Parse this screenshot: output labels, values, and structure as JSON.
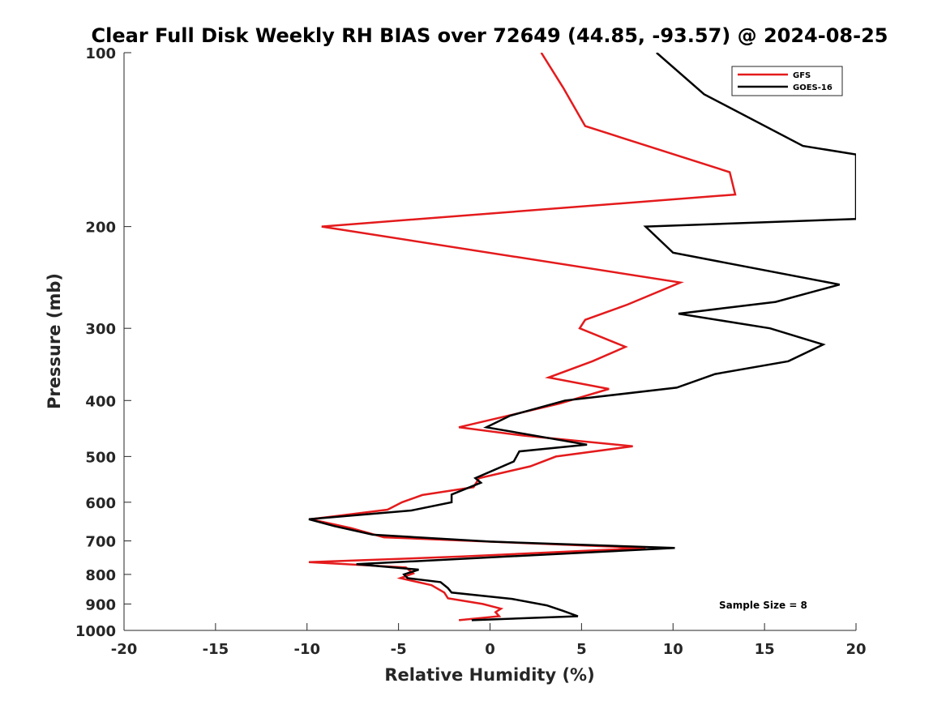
{
  "chart_data": {
    "type": "line",
    "title": "Clear Full Disk Weekly RH BIAS over 72649 (44.85, -93.57) @ 2024-08-25",
    "xlabel": "Relative Humidity (%)",
    "ylabel": "Pressure (mb)",
    "xlim": [
      -20,
      20
    ],
    "ylim": [
      100,
      1000
    ],
    "yscale": "log",
    "y_reversed": true,
    "xticks": [
      -20,
      -15,
      -10,
      -5,
      0,
      5,
      10,
      15,
      20
    ],
    "xtick_labels": [
      "-20",
      "-15",
      "-10",
      "-5",
      "0",
      "5",
      "10",
      "15",
      "20"
    ],
    "yticks": [
      100,
      200,
      300,
      400,
      500,
      600,
      700,
      800,
      900,
      1000
    ],
    "ytick_labels": [
      "100",
      "200",
      "300",
      "400",
      "500",
      "600",
      "700",
      "800",
      "900",
      "1000"
    ],
    "grid": false,
    "legend_position": "top-right",
    "annotation": "Sample Size = 8",
    "series": [
      {
        "name": "GFS",
        "color": "#e41a1c",
        "points": [
          [
            2.8,
            100
          ],
          [
            4,
            115
          ],
          [
            5.2,
            134
          ],
          [
            13.1,
            161
          ],
          [
            13.4,
            176
          ],
          [
            -9.2,
            200
          ],
          [
            10.4,
            250
          ],
          [
            7.5,
            273
          ],
          [
            5.2,
            290
          ],
          [
            4.9,
            300
          ],
          [
            7.4,
            323
          ],
          [
            5.6,
            342
          ],
          [
            3.2,
            365
          ],
          [
            6.5,
            382
          ],
          [
            3.8,
            405
          ],
          [
            -1.7,
            445
          ],
          [
            1.8,
            460
          ],
          [
            7.8,
            480
          ],
          [
            3.6,
            500
          ],
          [
            2.2,
            520
          ],
          [
            -0.6,
            545
          ],
          [
            -0.9,
            565
          ],
          [
            -3.7,
            583
          ],
          [
            -4.8,
            600
          ],
          [
            -5.6,
            618
          ],
          [
            -9.8,
            642
          ],
          [
            -7.6,
            665
          ],
          [
            -5.8,
            690
          ],
          [
            8.5,
            720
          ],
          [
            -1.5,
            745
          ],
          [
            -9.9,
            762
          ],
          [
            -4.6,
            778
          ],
          [
            -4.2,
            797
          ],
          [
            -4.9,
            812
          ],
          [
            -3.2,
            835
          ],
          [
            -2.5,
            860
          ],
          [
            -2.3,
            880
          ],
          [
            -0.4,
            900
          ],
          [
            0.6,
            917
          ],
          [
            0.3,
            930
          ],
          [
            0.5,
            945
          ],
          [
            -1.7,
            960
          ]
        ]
      },
      {
        "name": "GOES-16",
        "color": "#000000",
        "points": [
          [
            9.1,
            100
          ],
          [
            11.7,
            118
          ],
          [
            17.1,
            145
          ],
          [
            20,
            150
          ],
          [
            20,
            194
          ],
          [
            8.5,
            200
          ],
          [
            10,
            222
          ],
          [
            19.1,
            252
          ],
          [
            15.6,
            270
          ],
          [
            10.3,
            283
          ],
          [
            15.3,
            300
          ],
          [
            18.2,
            320
          ],
          [
            16.3,
            342
          ],
          [
            12.3,
            360
          ],
          [
            10.2,
            380
          ],
          [
            4.1,
            400
          ],
          [
            1.1,
            425
          ],
          [
            -0.2,
            445
          ],
          [
            5.3,
            477
          ],
          [
            1.6,
            490
          ],
          [
            1.3,
            510
          ],
          [
            -0.8,
            545
          ],
          [
            -0.5,
            555
          ],
          [
            -2.1,
            582
          ],
          [
            -2.1,
            600
          ],
          [
            -4.3,
            620
          ],
          [
            -9.9,
            642
          ],
          [
            -8.5,
            660
          ],
          [
            -6.4,
            683
          ],
          [
            0,
            702
          ],
          [
            10.1,
            720
          ],
          [
            -7.3,
            768
          ],
          [
            -3.9,
            785
          ],
          [
            -4.7,
            800
          ],
          [
            -4.5,
            812
          ],
          [
            -2.7,
            825
          ],
          [
            -2.3,
            845
          ],
          [
            -2.1,
            860
          ],
          [
            1.2,
            882
          ],
          [
            3.1,
            905
          ],
          [
            4,
            925
          ],
          [
            4.8,
            945
          ],
          [
            -1,
            960
          ]
        ]
      }
    ]
  }
}
